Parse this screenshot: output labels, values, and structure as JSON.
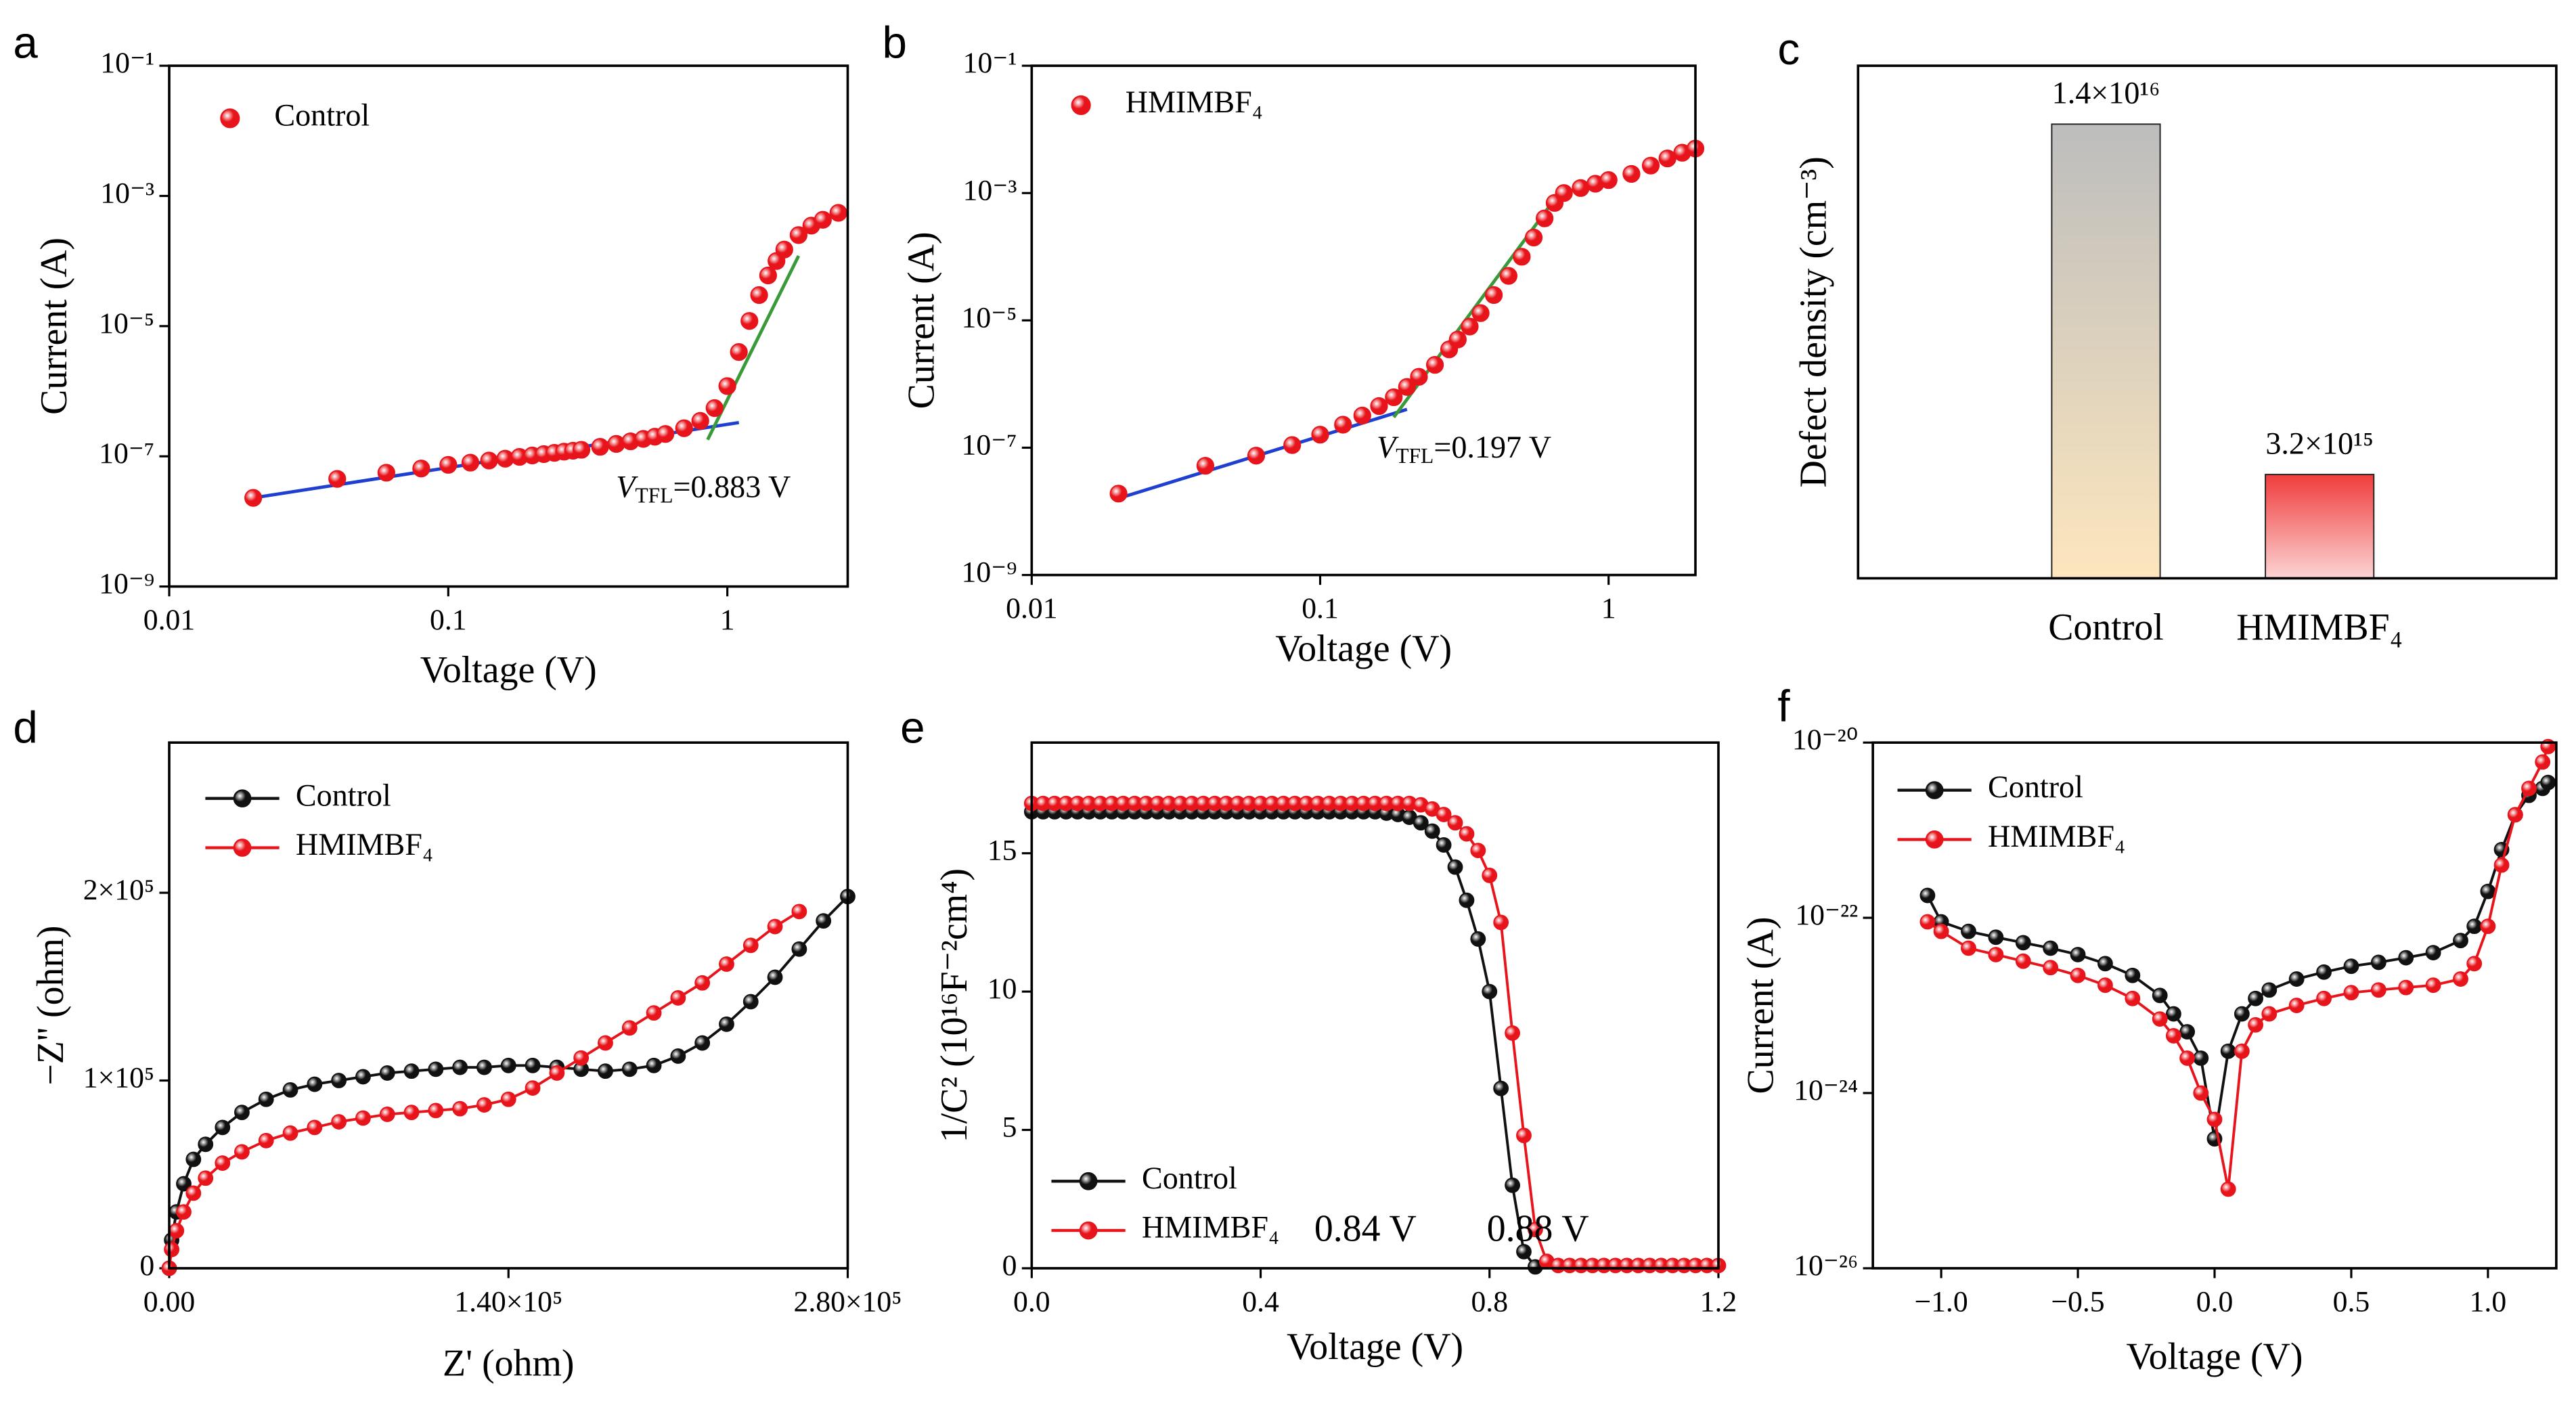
{
  "chart_data": [
    {
      "type": "scatter",
      "panel": "a",
      "xlabel": "Voltage (V)",
      "ylabel": "Current (A)",
      "xscale": "log",
      "yscale": "log",
      "xlim": [
        0.01,
        2.7
      ],
      "ylim": [
        1e-09,
        0.1
      ],
      "xticks": [
        0.01,
        0.1,
        1
      ],
      "yticks": [
        {
          "value": 1e-09,
          "label": "10⁻⁹"
        },
        {
          "value": 1e-07,
          "label": "10⁻⁷"
        },
        {
          "value": 1e-05,
          "label": "10⁻⁵"
        },
        {
          "value": 0.001,
          "label": "10⁻³"
        },
        {
          "value": 0.1,
          "label": "10⁻¹"
        }
      ],
      "x": [
        0.02,
        0.04,
        0.06,
        0.08,
        0.1,
        0.12,
        0.14,
        0.16,
        0.18,
        0.2,
        0.22,
        0.24,
        0.26,
        0.28,
        0.3,
        0.35,
        0.4,
        0.45,
        0.5,
        0.55,
        0.6,
        0.7,
        0.8,
        0.9,
        1,
        1.1,
        1.2,
        1.3,
        1.4,
        1.5,
        1.6,
        1.8,
        2,
        2.2,
        2.5
      ],
      "series": [
        {
          "name": "Control",
          "color": "#e8141b",
          "values": [
            2.3e-08,
            4.5e-08,
            5.6e-08,
            6.5e-08,
            7.4e-08,
            8e-08,
            8.6e-08,
            9.2e-08,
            9.8e-08,
            1.03e-07,
            1.08e-07,
            1.13e-07,
            1.18e-07,
            1.22e-07,
            1.26e-07,
            1.4e-07,
            1.55e-07,
            1.7e-07,
            1.85e-07,
            2e-07,
            2.2e-07,
            2.7e-07,
            3.5e-07,
            5.5e-07,
            1.2e-06,
            4e-06,
            1.2e-05,
            3e-05,
            6e-05,
            0.0001,
            0.00015,
            0.00025,
            0.00035,
            0.00043,
            0.00055
          ]
        }
      ],
      "fits": [
        {
          "color": "#1f3fd0",
          "x": [
            0.02,
            1.1
          ],
          "values": [
            2.3e-08,
            3.3e-07
          ]
        },
        {
          "color": "#3a9a3a",
          "x": [
            0.85,
            1.8
          ],
          "values": [
            1.8e-07,
            0.00012
          ]
        }
      ],
      "annotation": [
        "V",
        "TFL",
        "=0.883 V"
      ]
    },
    {
      "type": "scatter",
      "panel": "b",
      "xlabel": "Voltage (V)",
      "ylabel": "Current (A)",
      "xscale": "log",
      "yscale": "log",
      "xlim": [
        0.01,
        2
      ],
      "ylim": [
        1e-09,
        0.1
      ],
      "xticks": [
        0.01,
        0.1,
        1
      ],
      "yticks": [
        {
          "value": 1e-09,
          "label": "10⁻⁹"
        },
        {
          "value": 1e-07,
          "label": "10⁻⁷"
        },
        {
          "value": 1e-05,
          "label": "10⁻⁵"
        },
        {
          "value": 0.001,
          "label": "10⁻³"
        },
        {
          "value": 0.1,
          "label": "10⁻¹"
        }
      ],
      "x": [
        0.02,
        0.04,
        0.06,
        0.08,
        0.1,
        0.12,
        0.14,
        0.16,
        0.18,
        0.2,
        0.22,
        0.25,
        0.28,
        0.3,
        0.33,
        0.36,
        0.4,
        0.45,
        0.5,
        0.55,
        0.6,
        0.65,
        0.7,
        0.8,
        0.9,
        1,
        1.2,
        1.4,
        1.6,
        1.8,
        2
      ],
      "series": [
        {
          "name": "HMIMBF₄",
          "color": "#e8141b",
          "values": [
            1.9e-08,
            5.2e-08,
            7.5e-08,
            1.1e-07,
            1.6e-07,
            2.3e-07,
            3.2e-07,
            4.5e-07,
            6.2e-07,
            9e-07,
            1.3e-06,
            2e-06,
            3.5e-06,
            5e-06,
            8e-06,
            1.3e-05,
            2.5e-05,
            5e-05,
            0.0001,
            0.0002,
            0.0004,
            0.0007,
            0.001,
            0.0012,
            0.0014,
            0.0016,
            0.002,
            0.0027,
            0.0035,
            0.0043,
            0.005
          ]
        }
      ],
      "fits": [
        {
          "color": "#1f3fd0",
          "x": [
            0.02,
            0.2
          ],
          "values": [
            1.6e-08,
            4e-07
          ]
        },
        {
          "color": "#3a9a3a",
          "x": [
            0.18,
            0.65
          ],
          "values": [
            3e-07,
            0.0008
          ]
        }
      ],
      "annotation": [
        "V",
        "TFL",
        "=0.197 V"
      ]
    },
    {
      "type": "bar",
      "panel": "c",
      "ylabel": "Defect density (cm⁻³)",
      "ylim": [
        0,
        1.58e+16
      ],
      "categories": [
        "Control",
        "HMIMBF₄"
      ],
      "values": [
        1.4e+16,
        3200000000000000.0
      ],
      "value_labels": [
        "1.4×10¹⁶",
        "3.2×10¹⁵"
      ],
      "gradients": [
        [
          "#bdbdbd",
          "#fde6bd"
        ],
        [
          "#f03c3c",
          "#fcd4d4"
        ]
      ],
      "label_color": "#e8141b"
    },
    {
      "type": "line",
      "panel": "d",
      "xlabel": "Z' (ohm)",
      "ylabel": "−Z'' (ohm)",
      "xlim": [
        0,
        280000
      ],
      "ylim": [
        0,
        280000
      ],
      "xticks": [
        {
          "value": 0,
          "label": "0.00"
        },
        {
          "value": 140000,
          "label": "1.40×10⁵"
        },
        {
          "value": 280000,
          "label": "2.80×10⁵"
        }
      ],
      "yticks": [
        0,
        {
          "value": 100000,
          "label": "1×10⁵"
        },
        {
          "value": 200000,
          "label": "2×10⁵"
        }
      ],
      "series": [
        {
          "name": "Control",
          "color": "#111111",
          "x": [
            0,
            1000,
            3000,
            6000,
            10000,
            15000,
            22000,
            30000,
            40000,
            50000,
            60000,
            70000,
            80000,
            90000,
            100000,
            110000,
            120000,
            130000,
            140000,
            150000,
            160000,
            170000,
            180000,
            190000,
            200000,
            210000,
            220000,
            230000,
            240000,
            250000,
            260000,
            270000,
            280000
          ],
          "values": [
            0,
            15000,
            30000,
            45000,
            58000,
            66000,
            75000,
            83000,
            90000,
            95000,
            98000,
            100000,
            102000,
            104000,
            105000,
            106000,
            107000,
            107000,
            108000,
            108000,
            107000,
            106000,
            105000,
            106000,
            108000,
            113000,
            120000,
            130000,
            142000,
            155000,
            170000,
            185000,
            198000
          ]
        },
        {
          "name": "HMIMBF₄",
          "color": "#e8141b",
          "x": [
            0,
            1000,
            3000,
            6000,
            10000,
            15000,
            22000,
            30000,
            40000,
            50000,
            60000,
            70000,
            80000,
            90000,
            100000,
            110000,
            120000,
            130000,
            140000,
            150000,
            160000,
            170000,
            180000,
            190000,
            200000,
            210000,
            220000,
            230000,
            240000,
            250000,
            260000
          ],
          "values": [
            0,
            10000,
            20000,
            30000,
            40000,
            48000,
            56000,
            62000,
            68000,
            72000,
            75000,
            78000,
            80000,
            82000,
            83000,
            84000,
            85000,
            87000,
            90000,
            96000,
            104000,
            112000,
            120000,
            128000,
            136000,
            144000,
            152000,
            162000,
            172000,
            182000,
            190000
          ]
        }
      ]
    },
    {
      "type": "line",
      "panel": "e",
      "xlabel": "Voltage (V)",
      "ylabel": "1/C² (10¹⁶F⁻²cm⁴)",
      "xlim": [
        0,
        1.2
      ],
      "ylim": [
        0,
        19
      ],
      "xticks": [
        {
          "value": 0,
          "label": "0.0"
        },
        0.4,
        0.8,
        1.2
      ],
      "yticks": [
        0,
        5,
        10,
        15
      ],
      "x": [
        0,
        0.02,
        0.04,
        0.06,
        0.08,
        0.1,
        0.12,
        0.14,
        0.16,
        0.18,
        0.2,
        0.22,
        0.24,
        0.26,
        0.28,
        0.3,
        0.32,
        0.34,
        0.36,
        0.38,
        0.4,
        0.42,
        0.44,
        0.46,
        0.48,
        0.5,
        0.52,
        0.54,
        0.56,
        0.58,
        0.6,
        0.62,
        0.64,
        0.66,
        0.68,
        0.7,
        0.72,
        0.74,
        0.76,
        0.78,
        0.8,
        0.82,
        0.84,
        0.86,
        0.88,
        0.9,
        0.92,
        0.94,
        0.96,
        0.98,
        1,
        1.02,
        1.04,
        1.06,
        1.08,
        1.1,
        1.12,
        1.14,
        1.16,
        1.18,
        1.2
      ],
      "series": [
        {
          "name": "Control",
          "color": "#111111",
          "values": [
            16.5,
            16.5,
            16.5,
            16.5,
            16.5,
            16.5,
            16.5,
            16.5,
            16.5,
            16.5,
            16.5,
            16.5,
            16.5,
            16.5,
            16.5,
            16.5,
            16.5,
            16.5,
            16.5,
            16.5,
            16.5,
            16.5,
            16.5,
            16.5,
            16.5,
            16.5,
            16.5,
            16.5,
            16.5,
            16.5,
            16.5,
            16.45,
            16.4,
            16.3,
            16.1,
            15.8,
            15.3,
            14.5,
            13.3,
            11.9,
            10,
            6.5,
            3,
            0.6,
            0.05,
            null,
            null,
            null,
            null,
            null,
            null,
            null,
            null,
            null,
            null,
            null,
            null,
            null,
            null,
            null,
            null
          ]
        },
        {
          "name": "HMIMBF₄",
          "color": "#e8141b",
          "values": [
            16.8,
            16.8,
            16.8,
            16.8,
            16.8,
            16.8,
            16.8,
            16.8,
            16.8,
            16.8,
            16.8,
            16.8,
            16.8,
            16.8,
            16.8,
            16.8,
            16.8,
            16.8,
            16.8,
            16.8,
            16.8,
            16.8,
            16.8,
            16.8,
            16.8,
            16.8,
            16.8,
            16.8,
            16.8,
            16.8,
            16.8,
            16.8,
            16.8,
            16.8,
            16.75,
            16.6,
            16.4,
            16.1,
            15.7,
            15.1,
            14.2,
            12.5,
            8.5,
            4.8,
            1.4,
            0.25,
            0.1,
            0.1,
            0.1,
            0.1,
            0.1,
            0.1,
            0.1,
            0.1,
            0.1,
            0.1,
            0.1,
            0.1,
            0.1,
            0.1,
            0.1
          ]
        }
      ],
      "annotations": [
        "0.84 V",
        "0.88 V"
      ]
    },
    {
      "type": "line",
      "panel": "f",
      "xlabel": "Voltage (V)",
      "ylabel": "Current (A)",
      "yscale": "log",
      "xlim": [
        -1.25,
        1.25
      ],
      "ylim": [
        1e-26,
        1e-20
      ],
      "xticks": [
        {
          "value": -1,
          "label": "−1.0"
        },
        {
          "value": -0.5,
          "label": "−0.5"
        },
        {
          "value": 0,
          "label": "0.0"
        },
        0.5,
        {
          "value": 1,
          "label": "1.0"
        }
      ],
      "yticks": [
        {
          "value": 1e-26,
          "label": "10⁻²⁶"
        },
        {
          "value": 1e-24,
          "label": "10⁻²⁴"
        },
        {
          "value": 1e-22,
          "label": "10⁻²²"
        },
        {
          "value": 1e-20,
          "label": "10⁻²⁰"
        }
      ],
      "x": [
        -1.05,
        -1,
        -0.9,
        -0.8,
        -0.7,
        -0.6,
        -0.5,
        -0.4,
        -0.3,
        -0.2,
        -0.15,
        -0.1,
        -0.05,
        0,
        0.05,
        0.1,
        0.15,
        0.2,
        0.3,
        0.4,
        0.5,
        0.6,
        0.7,
        0.8,
        0.9,
        0.95,
        1,
        1.05,
        1.1,
        1.15,
        1.2,
        1.22
      ],
      "series": [
        {
          "name": "Control",
          "color": "#111111",
          "values": [
            1.8e-22,
            9e-23,
            7e-23,
            6e-23,
            5.2e-23,
            4.5e-23,
            3.8e-23,
            3e-23,
            2.2e-23,
            1.3e-23,
            8e-24,
            5e-24,
            2.5e-24,
            3e-25,
            3e-24,
            8e-24,
            1.2e-23,
            1.5e-23,
            2e-23,
            2.4e-23,
            2.8e-23,
            3.1e-23,
            3.5e-23,
            4e-23,
            5.5e-23,
            8e-23,
            2e-22,
            6e-22,
            1.5e-21,
            2.5e-21,
            3e-21,
            3.5e-21
          ]
        },
        {
          "name": "HMIMBF₄",
          "color": "#e8141b",
          "values": [
            9e-23,
            7e-23,
            4.5e-23,
            3.8e-23,
            3.2e-23,
            2.7e-23,
            2.2e-23,
            1.7e-23,
            1.2e-23,
            7e-24,
            4.5e-24,
            2.5e-24,
            1e-24,
            5e-25,
            8e-26,
            3e-24,
            6e-24,
            8e-24,
            1e-23,
            1.2e-23,
            1.4e-23,
            1.5e-23,
            1.6e-23,
            1.7e-23,
            2e-23,
            3e-23,
            8e-23,
            4e-22,
            1.5e-21,
            3e-21,
            6e-21,
            9e-21
          ]
        }
      ]
    }
  ]
}
